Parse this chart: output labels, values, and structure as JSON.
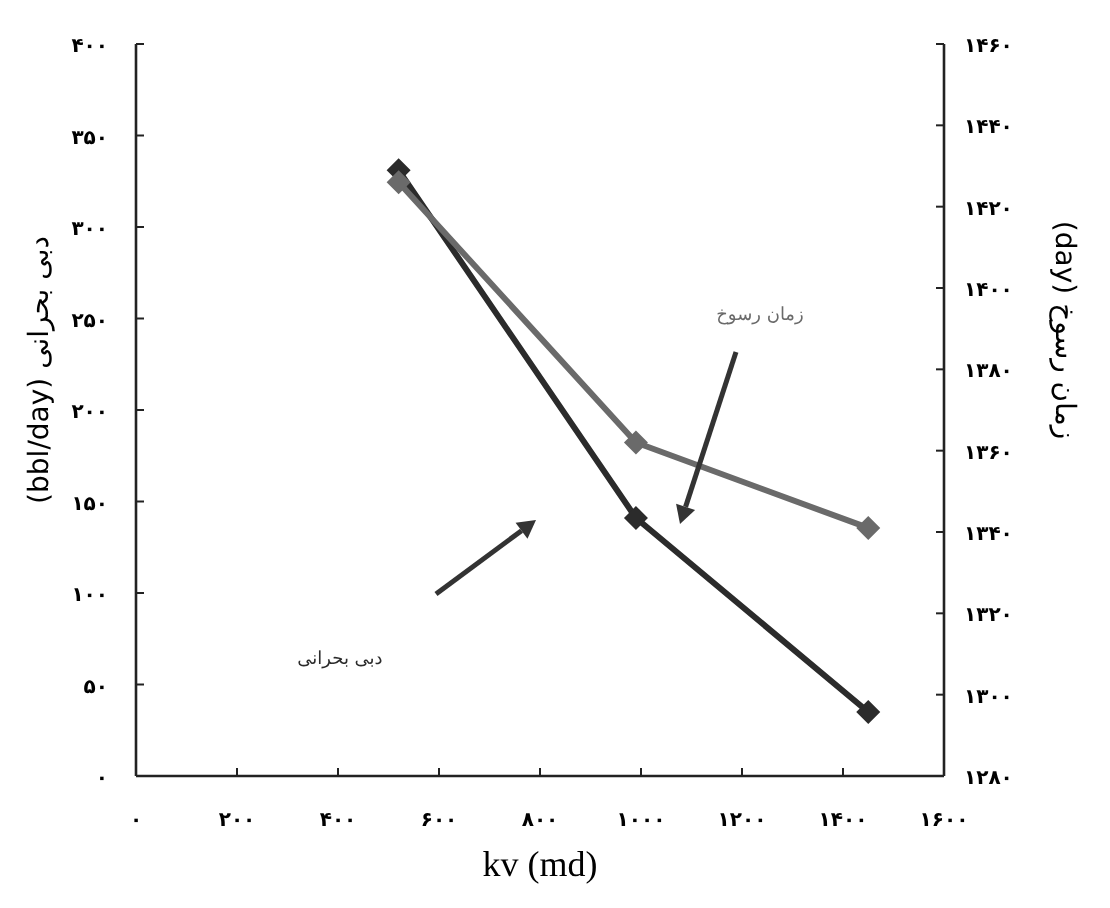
{
  "chart_data": {
    "type": "line",
    "xlabel": "kv (md)",
    "ylabel": "دبی بحرانی (bbl/day)",
    "y2label": "زمان رسوخ (day)",
    "x": [
      520,
      990,
      1450
    ],
    "series": [
      {
        "name": "دبی بحرانی",
        "color": "#2b2b2b",
        "values": [
          331,
          141,
          35
        ]
      },
      {
        "name": "زمان رسوخ",
        "color": "#6a6a6a",
        "values": [
          1426,
          1362,
          1341
        ],
        "axis": "y2"
      }
    ],
    "xlim": [
      0,
      1600
    ],
    "xticks": [
      {
        "value": 0,
        "label": "۰"
      },
      {
        "value": 200,
        "label": "۲۰۰"
      },
      {
        "value": 400,
        "label": "۴۰۰"
      },
      {
        "value": 600,
        "label": "۶۰۰"
      },
      {
        "value": 800,
        "label": "۸۰۰"
      },
      {
        "value": 1000,
        "label": "۱۰۰۰"
      },
      {
        "value": 1200,
        "label": "۱۲۰۰"
      },
      {
        "value": 1400,
        "label": "۱۴۰۰"
      },
      {
        "value": 1600,
        "label": "۱۶۰۰"
      }
    ],
    "ylim": [
      0,
      400
    ],
    "yticks": [
      {
        "value": 0,
        "label": "۰"
      },
      {
        "value": 50,
        "label": "۵۰"
      },
      {
        "value": 100,
        "label": "۱۰۰"
      },
      {
        "value": 150,
        "label": "۱۵۰"
      },
      {
        "value": 200,
        "label": "۲۰۰"
      },
      {
        "value": 250,
        "label": "۲۵۰"
      },
      {
        "value": 300,
        "label": "۳۰۰"
      },
      {
        "value": 350,
        "label": "۳۵۰"
      },
      {
        "value": 400,
        "label": "۴۰۰"
      }
    ],
    "y2lim": [
      1280,
      1460
    ],
    "y2ticks": [
      {
        "value": 1280,
        "label": "۱۲۸۰"
      },
      {
        "value": 1300,
        "label": "۱۳۰۰"
      },
      {
        "value": 1320,
        "label": "۱۳۲۰"
      },
      {
        "value": 1340,
        "label": "۱۳۴۰"
      },
      {
        "value": 1360,
        "label": "۱۳۶۰"
      },
      {
        "value": 1380,
        "label": "۱۳۸۰"
      },
      {
        "value": 1400,
        "label": "۱۴۰۰"
      },
      {
        "value": 1420,
        "label": "۱۴۲۰"
      },
      {
        "value": 1440,
        "label": "۱۴۴۰"
      },
      {
        "value": 1460,
        "label": "۱۴۶۰"
      }
    ],
    "marker": "diamond",
    "line_style": "solid"
  }
}
